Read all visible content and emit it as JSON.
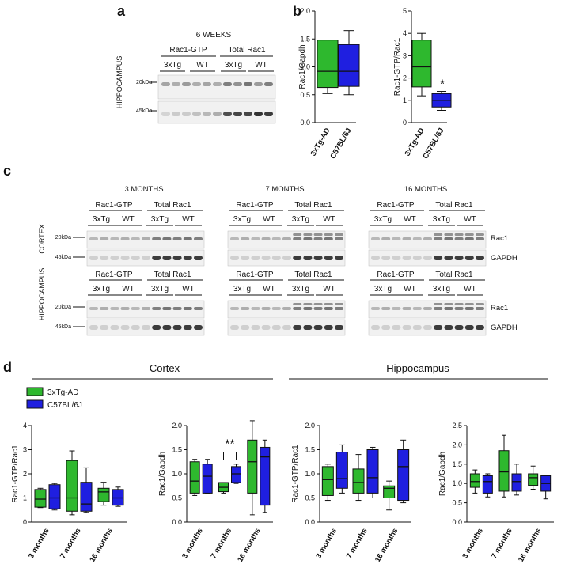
{
  "panels": {
    "a": "a",
    "b": "b",
    "c": "c",
    "d": "d"
  },
  "panel_a": {
    "title": "6 WEEKS",
    "groups": [
      "Rac1-GTP",
      "Total Rac1"
    ],
    "strains": [
      "3xTg",
      "WT",
      "3xTg",
      "WT"
    ],
    "markers": [
      "20kDa",
      "45kDa"
    ],
    "side_label": "HIPPOCAMPUS"
  },
  "panel_c": {
    "timepoints": [
      "3 MONTHS",
      "7 MONTHS",
      "16 MONTHS"
    ],
    "groups": [
      "Rac1-GTP",
      "Total Rac1"
    ],
    "strains": [
      "3xTg",
      "WT",
      "3xTg",
      "WT"
    ],
    "markers": [
      "20kDa",
      "45kDa"
    ],
    "tissues": [
      "CORTEX",
      "HIPPOCAMPUS"
    ],
    "bands": [
      "Rac1",
      "GAPDH"
    ]
  },
  "panel_d": {
    "sections": [
      "Cortex",
      "Hippocampus"
    ],
    "legend": [
      "3xTg-AD",
      "C57BL/6J"
    ]
  },
  "colors": {
    "tg": "#2eb82e",
    "wt": "#1f1fe0"
  },
  "chart_data": [
    {
      "id": "b1",
      "type": "box",
      "ylabel": "Rac1/Gapdh",
      "ylim": [
        0,
        2.0
      ],
      "yticks": [
        "0.0",
        "0.5",
        "1.0",
        "1.5",
        "2.0"
      ],
      "categories": [
        "3xTg-AD",
        "C57BL/6J"
      ],
      "boxes": [
        {
          "series": "3xTg-AD",
          "min": 0.52,
          "q1": 0.63,
          "median": 0.92,
          "q3": 1.48,
          "max": 1.48
        },
        {
          "series": "C57BL/6J",
          "min": 0.5,
          "q1": 0.65,
          "median": 0.92,
          "q3": 1.4,
          "max": 1.65
        }
      ],
      "annotation": null
    },
    {
      "id": "b2",
      "type": "box",
      "ylabel": "Rac1-GTP/Rac1",
      "ylim": [
        0,
        5
      ],
      "yticks": [
        "0",
        "1",
        "2",
        "3",
        "4",
        "5"
      ],
      "categories": [
        "3xTg-AD",
        "C57BL/6J"
      ],
      "boxes": [
        {
          "series": "3xTg-AD",
          "min": 1.2,
          "q1": 1.6,
          "median": 2.5,
          "q3": 3.7,
          "max": 4.0
        },
        {
          "series": "C57BL/6J",
          "min": 0.55,
          "q1": 0.7,
          "median": 1.0,
          "q3": 1.3,
          "max": 1.4
        }
      ],
      "annotation": "*"
    },
    {
      "id": "d1",
      "type": "box",
      "ylabel": "Rac1-GTP/Rac1",
      "ylim": [
        0,
        4
      ],
      "yticks": [
        "0",
        "1",
        "2",
        "3",
        "4"
      ],
      "categories": [
        "3 months",
        "7 months",
        "16 months"
      ],
      "boxes": [
        {
          "series": "3xTg-AD",
          "category": "3 months",
          "min": 0.6,
          "q1": 0.62,
          "median": 0.95,
          "q3": 1.35,
          "max": 1.4
        },
        {
          "series": "C57BL/6J",
          "category": "3 months",
          "min": 0.5,
          "q1": 0.55,
          "median": 1.0,
          "q3": 1.55,
          "max": 1.6
        },
        {
          "series": "3xTg-AD",
          "category": "7 months",
          "min": 0.3,
          "q1": 0.45,
          "median": 1.0,
          "q3": 2.55,
          "max": 2.95
        },
        {
          "series": "C57BL/6J",
          "category": "7 months",
          "min": 0.4,
          "q1": 0.45,
          "median": 0.75,
          "q3": 1.65,
          "max": 2.25
        },
        {
          "series": "3xTg-AD",
          "category": "16 months",
          "min": 0.7,
          "q1": 0.85,
          "median": 1.25,
          "q3": 1.4,
          "max": 1.65
        },
        {
          "series": "C57BL/6J",
          "category": "16 months",
          "min": 0.65,
          "q1": 0.7,
          "median": 1.0,
          "q3": 1.35,
          "max": 1.45
        }
      ],
      "annotation": null
    },
    {
      "id": "d2",
      "type": "box",
      "ylabel": "Rac1/Gapdh",
      "ylim": [
        0,
        2.0
      ],
      "yticks": [
        "0.0",
        "0.5",
        "1.0",
        "1.5",
        "2.0"
      ],
      "categories": [
        "3 months",
        "7 months",
        "16 months"
      ],
      "boxes": [
        {
          "series": "3xTg-AD",
          "category": "3 months",
          "min": 0.55,
          "q1": 0.6,
          "median": 0.85,
          "q3": 1.25,
          "max": 1.3
        },
        {
          "series": "C57BL/6J",
          "category": "3 months",
          "min": 0.6,
          "q1": 0.6,
          "median": 0.95,
          "q3": 1.2,
          "max": 1.3
        },
        {
          "series": "3xTg-AD",
          "category": "7 months",
          "min": 0.6,
          "q1": 0.63,
          "median": 0.72,
          "q3": 0.82,
          "max": 0.82
        },
        {
          "series": "C57BL/6J",
          "category": "7 months",
          "min": 0.8,
          "q1": 0.82,
          "median": 1.0,
          "q3": 1.15,
          "max": 1.2
        },
        {
          "series": "3xTg-AD",
          "category": "16 months",
          "min": 0.15,
          "q1": 0.6,
          "median": 1.25,
          "q3": 1.7,
          "max": 2.1
        },
        {
          "series": "C57BL/6J",
          "category": "16 months",
          "min": 0.2,
          "q1": 0.35,
          "median": 1.35,
          "q3": 1.55,
          "max": 1.7
        }
      ],
      "annotation": "**"
    },
    {
      "id": "d3",
      "type": "box",
      "ylabel": "Rac1-GTP/Rac1",
      "ylim": [
        0,
        2.0
      ],
      "yticks": [
        "0.0",
        "0.5",
        "1.0",
        "1.5",
        "2.0"
      ],
      "categories": [
        "3 months",
        "7 months",
        "16 months"
      ],
      "boxes": [
        {
          "series": "3xTg-AD",
          "category": "3 months",
          "min": 0.45,
          "q1": 0.55,
          "median": 0.88,
          "q3": 1.15,
          "max": 1.2
        },
        {
          "series": "C57BL/6J",
          "category": "3 months",
          "min": 0.6,
          "q1": 0.7,
          "median": 0.9,
          "q3": 1.45,
          "max": 1.6
        },
        {
          "series": "3xTg-AD",
          "category": "7 months",
          "min": 0.45,
          "q1": 0.6,
          "median": 0.82,
          "q3": 1.1,
          "max": 1.4
        },
        {
          "series": "C57BL/6J",
          "category": "7 months",
          "min": 0.5,
          "q1": 0.6,
          "median": 0.92,
          "q3": 1.5,
          "max": 1.55
        },
        {
          "series": "3xTg-AD",
          "category": "16 months",
          "min": 0.25,
          "q1": 0.5,
          "median": 0.7,
          "q3": 0.75,
          "max": 0.85
        },
        {
          "series": "C57BL/6J",
          "category": "16 months",
          "min": 0.4,
          "q1": 0.45,
          "median": 1.15,
          "q3": 1.5,
          "max": 1.7
        }
      ],
      "annotation": null
    },
    {
      "id": "d4",
      "type": "box",
      "ylabel": "Rac1/Gapdh",
      "ylim": [
        0,
        2.5
      ],
      "yticks": [
        "0.0",
        "0.5",
        "1.0",
        "1.5",
        "2.0",
        "2.5"
      ],
      "categories": [
        "3 months",
        "7 months",
        "16 months"
      ],
      "boxes": [
        {
          "series": "3xTg-AD",
          "category": "3 months",
          "min": 0.75,
          "q1": 0.9,
          "median": 1.05,
          "q3": 1.25,
          "max": 1.35
        },
        {
          "series": "C57BL/6J",
          "category": "3 months",
          "min": 0.65,
          "q1": 0.75,
          "median": 1.05,
          "q3": 1.2,
          "max": 1.25
        },
        {
          "series": "3xTg-AD",
          "category": "7 months",
          "min": 0.65,
          "q1": 0.8,
          "median": 1.3,
          "q3": 1.85,
          "max": 2.25
        },
        {
          "series": "C57BL/6J",
          "category": "7 months",
          "min": 0.7,
          "q1": 0.8,
          "median": 1.05,
          "q3": 1.25,
          "max": 1.5
        },
        {
          "series": "3xTg-AD",
          "category": "16 months",
          "min": 0.85,
          "q1": 0.95,
          "median": 1.15,
          "q3": 1.25,
          "max": 1.45
        },
        {
          "series": "C57BL/6J",
          "category": "16 months",
          "min": 0.6,
          "q1": 0.8,
          "median": 1.0,
          "q3": 1.2,
          "max": 1.2
        }
      ],
      "annotation": null
    }
  ]
}
